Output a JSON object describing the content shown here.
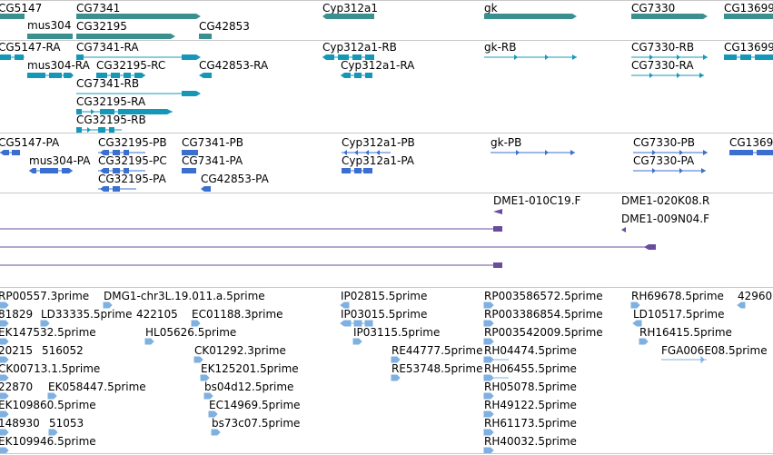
{
  "colors": {
    "gene": "#3a8f8f",
    "transcript": "#1597b8",
    "protein": "#3a6fd0",
    "clone": "#6a4c9c",
    "est": "#7fb0e0",
    "divider": "#c8c8c8"
  },
  "tracks": {
    "genes": {
      "labels": [
        "CG5147",
        "mus304",
        "CG7341",
        "CG32195",
        "CG42853",
        "Cyp312a1",
        "gk",
        "CG7330",
        "CG13699"
      ]
    },
    "transcripts": {
      "labels": [
        "CG5147-RA",
        "mus304-RA",
        "CG7341-RA",
        "CG32195-RC",
        "CG42853-RA",
        "CG7341-RB",
        "CG32195-RA",
        "CG32195-RB",
        "Cyp312a1-RB",
        "Cyp312a1-RA",
        "gk-RB",
        "CG7330-RB",
        "CG7330-RA",
        "CG13699"
      ]
    },
    "proteins": {
      "labels": [
        "CG5147-PA",
        "mus304-PA",
        "CG32195-PB",
        "CG32195-PC",
        "CG32195-PA",
        "CG7341-PB",
        "CG7341-PA",
        "CG42853-PA",
        "Cyp312a1-PB",
        "Cyp312a1-PA",
        "gk-PB",
        "CG7330-PB",
        "CG7330-PA",
        "CG1369"
      ]
    },
    "clones": {
      "labels": [
        "DME1-010C19.F",
        "DME1-020K08.R",
        "DME1-009N04.F"
      ]
    },
    "ests": {
      "labels": [
        "RP00557.3prime",
        "DMG1-chr3L.19.011.a.5prime",
        "IP02815.5prime",
        "RP003586572.5prime",
        "RH69678.5prime",
        "42960",
        "81829",
        "LD33335.5prime",
        "422105",
        "EC01188.3prime",
        "IP03015.5prime",
        "RP003386854.5prime",
        "LD10517.5prime",
        "EK147532.5prime",
        "HL05626.5prime",
        "IP03115.5prime",
        "RP003542009.5prime",
        "RH16415.5prime",
        "20215",
        "516052",
        "CK01292.3prime",
        "RE44777.5prime",
        "RH04474.5prime",
        "FGA006E08.5prime",
        "CK00713.1.5prime",
        "EK125201.5prime",
        "RE53748.5prime",
        "RH06455.5prime",
        "22870",
        "EK058447.5prime",
        "bs04d12.5prime",
        "RH05078.5prime",
        "EK109860.5prime",
        "EC14969.5prime",
        "RH49122.5prime",
        "148930",
        "51053",
        "bs73c07.5prime",
        "RH61173.5prime",
        "EK109946.5prime",
        "RH40032.5prime"
      ]
    }
  }
}
